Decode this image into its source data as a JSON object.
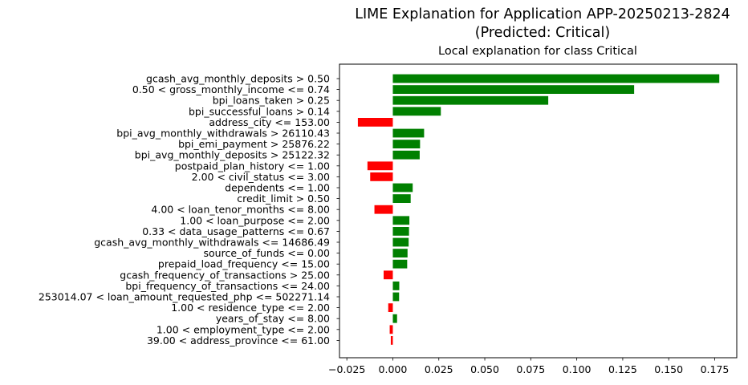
{
  "figure": {
    "suptitle_line1": "LIME Explanation for Application APP-20250213-2824",
    "suptitle_line2": "(Predicted: Critical)"
  },
  "chart_data": {
    "type": "bar",
    "orientation": "horizontal",
    "title": "Local explanation for class Critical",
    "xlabel": "",
    "ylabel": "",
    "xlim": [
      -0.029,
      0.187
    ],
    "xticks": [
      -0.025,
      0.0,
      0.025,
      0.05,
      0.075,
      0.1,
      0.125,
      0.15,
      0.175
    ],
    "xtick_labels": [
      "−0.025",
      "0.000",
      "0.025",
      "0.050",
      "0.075",
      "0.100",
      "0.125",
      "0.150",
      "0.175"
    ],
    "grid": false,
    "positive_color": "#008000",
    "negative_color": "#ff0000",
    "categories": [
      "gcash_avg_monthly_deposits > 0.50",
      "0.50 < gross_monthly_income <= 0.74",
      "bpi_loans_taken > 0.25",
      "bpi_successful_loans > 0.14",
      "address_city <= 153.00",
      "bpi_avg_monthly_withdrawals > 26110.43",
      "bpi_emi_payment > 25876.22",
      "bpi_avg_monthly_deposits > 25122.32",
      "postpaid_plan_history <= 1.00",
      "2.00 < civil_status <= 3.00",
      "dependents <= 1.00",
      "credit_limit > 0.50",
      "4.00 < loan_tenor_months <= 8.00",
      "1.00 < loan_purpose <= 2.00",
      "0.33 < data_usage_patterns <= 0.67",
      "gcash_avg_monthly_withdrawals <= 14686.49",
      "source_of_funds <= 0.00",
      "prepaid_load_frequency <= 15.00",
      "gcash_frequency_of_transactions > 25.00",
      "bpi_frequency_of_transactions <= 24.00",
      "253014.07 < loan_amount_requested_php <= 502271.14",
      "1.00 < residence_type <= 2.00",
      "years_of_stay <= 8.00",
      "1.00 < employment_type <= 2.00",
      "39.00 < address_province <= 61.00"
    ],
    "values": [
      0.1775,
      0.1312,
      0.0845,
      0.0261,
      -0.019,
      0.017,
      0.0148,
      0.0146,
      -0.0138,
      -0.0123,
      0.0108,
      0.0097,
      -0.01,
      0.009,
      0.0088,
      0.0086,
      0.008,
      0.0078,
      -0.005,
      0.0035,
      0.0034,
      -0.0025,
      0.0023,
      -0.0017,
      -0.0011
    ]
  }
}
